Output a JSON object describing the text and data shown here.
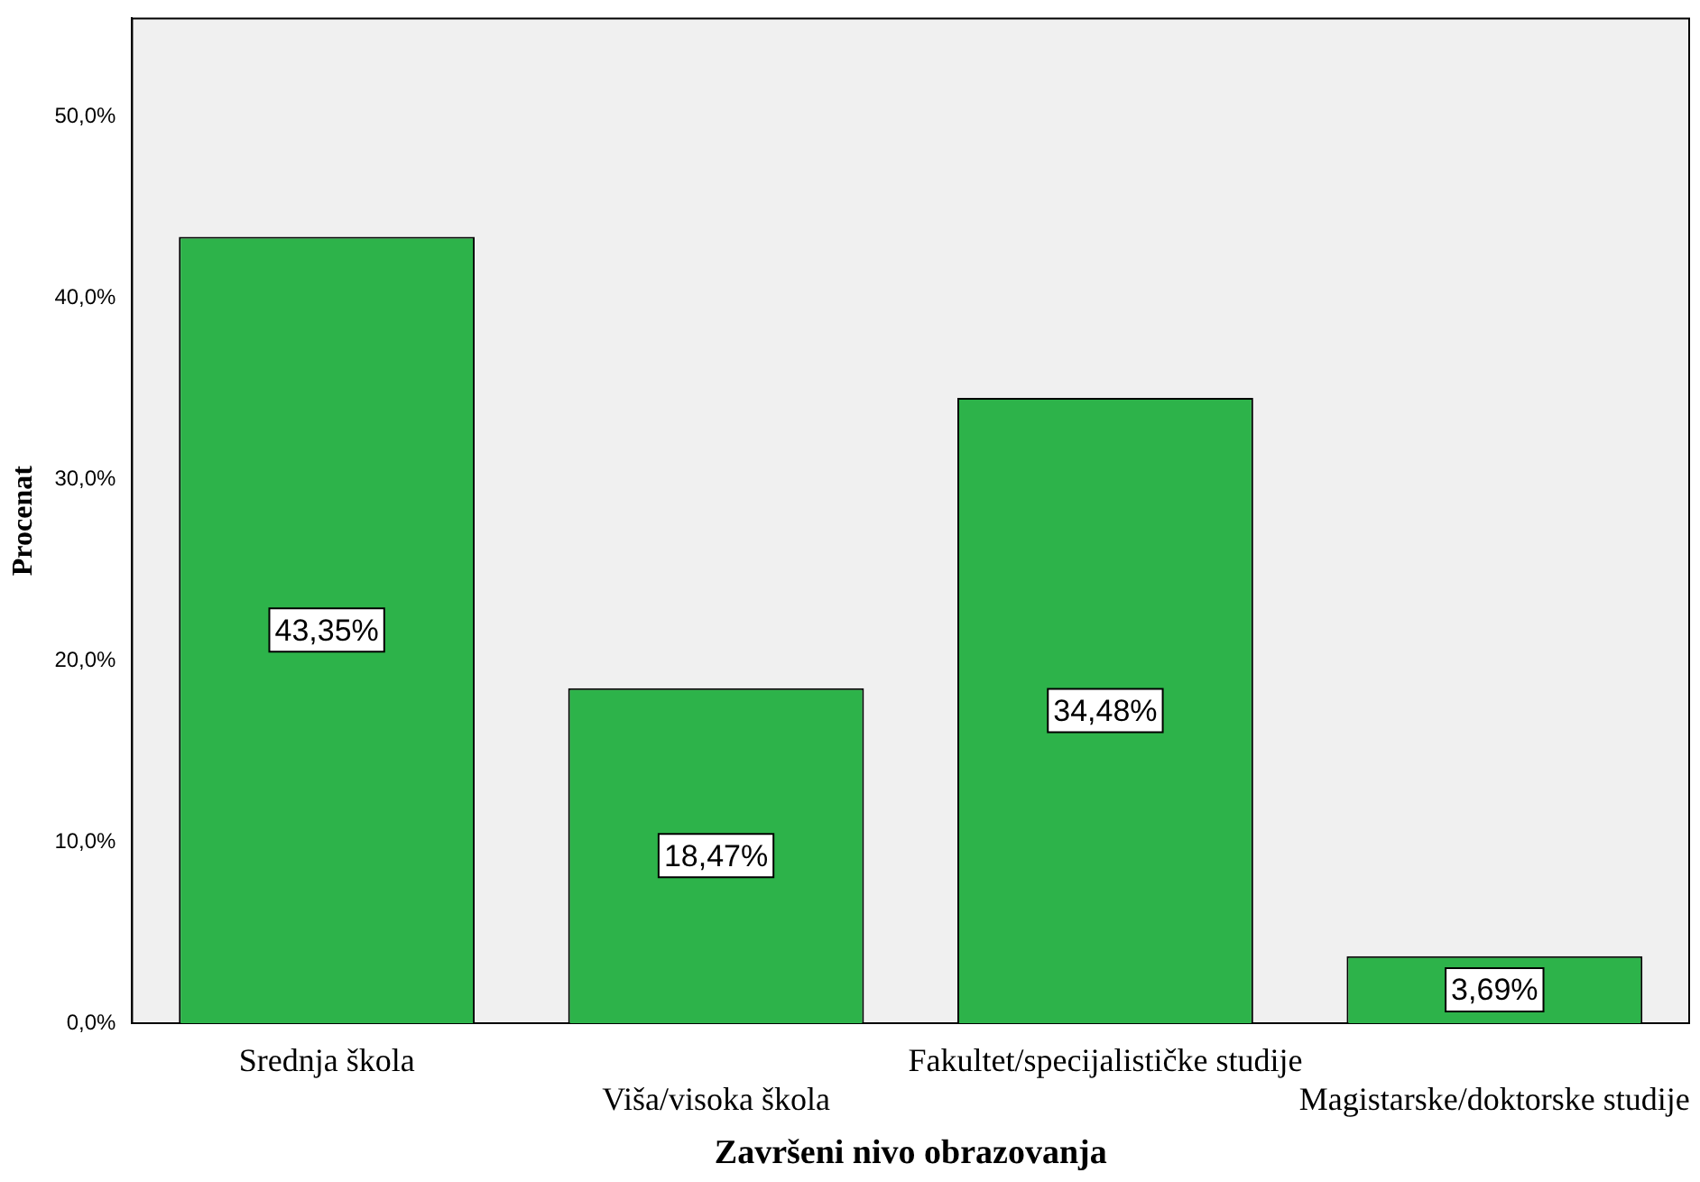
{
  "chart_data": {
    "type": "bar",
    "xlabel": "Završeni nivo obrazovanja",
    "ylabel": "Procenat",
    "categories": [
      "Srednja škola",
      "Viša/visoka škola",
      "Fakultet/specijalističke studije",
      "Magistarske/doktorske studije"
    ],
    "values": [
      43.35,
      18.47,
      34.48,
      3.69
    ],
    "color": "#2db34a",
    "value_labels": [
      "43,35%",
      "18,47%",
      "34,48%",
      "3,69%"
    ],
    "ylim": [
      0,
      55.4
    ],
    "yticks": [
      {
        "value": 0,
        "label": "0,0%"
      },
      {
        "value": 10,
        "label": "10,0%"
      },
      {
        "value": 20,
        "label": "20,0%"
      },
      {
        "value": 30,
        "label": "30,0%"
      },
      {
        "value": 40,
        "label": "40,0%"
      },
      {
        "value": 50,
        "label": "50,0%"
      }
    ],
    "grid": false,
    "legend": false
  }
}
